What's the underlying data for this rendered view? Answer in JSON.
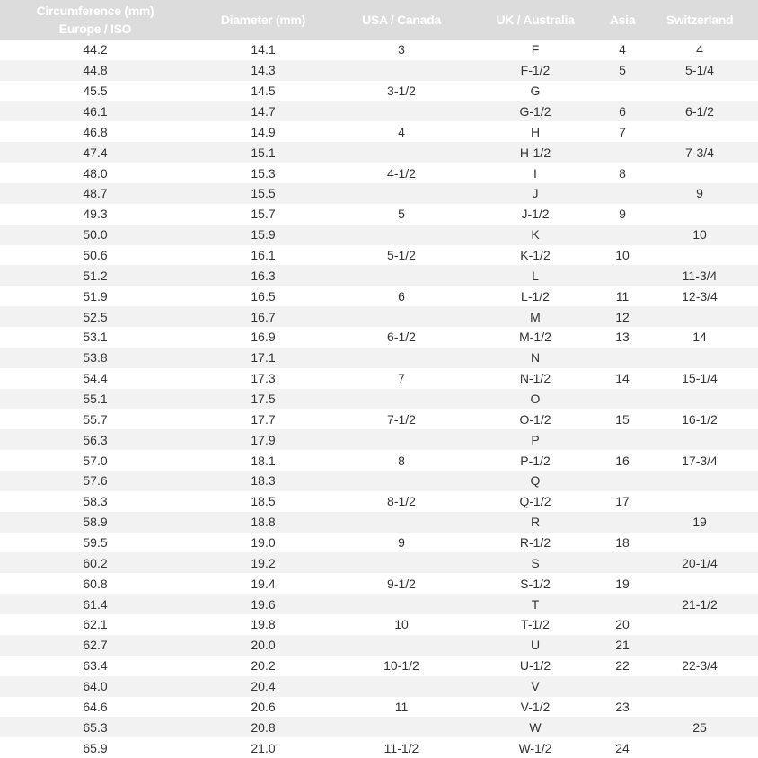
{
  "columns": [
    [
      "Circumference (mm)",
      "Europe / ISO"
    ],
    [
      "Diameter (mm)"
    ],
    [
      "USA / Canada"
    ],
    [
      "UK / Australia"
    ],
    [
      "Asia"
    ],
    [
      "Switzerland"
    ]
  ],
  "rows": [
    [
      "44.2",
      "14.1",
      "3",
      "F",
      "4",
      "4"
    ],
    [
      "44.8",
      "14.3",
      "",
      "F-1/2",
      "5",
      "5-1/4"
    ],
    [
      "45.5",
      "14.5",
      "3-1/2",
      "G",
      "",
      ""
    ],
    [
      "46.1",
      "14.7",
      "",
      "G-1/2",
      "6",
      "6-1/2"
    ],
    [
      "46.8",
      "14.9",
      "4",
      "H",
      "7",
      ""
    ],
    [
      "47.4",
      "15.1",
      "",
      "H-1/2",
      "",
      "7-3/4"
    ],
    [
      "48.0",
      "15.3",
      "4-1/2",
      "I",
      "8",
      ""
    ],
    [
      "48.7",
      "15.5",
      "",
      "J",
      "",
      "9"
    ],
    [
      "49.3",
      "15.7",
      "5",
      "J-1/2",
      "9",
      ""
    ],
    [
      "50.0",
      "15.9",
      "",
      "K",
      "",
      "10"
    ],
    [
      "50.6",
      "16.1",
      "5-1/2",
      "K-1/2",
      "10",
      ""
    ],
    [
      "51.2",
      "16.3",
      "",
      "L",
      "",
      "11-3/4"
    ],
    [
      "51.9",
      "16.5",
      "6",
      "L-1/2",
      "11",
      "12-3/4"
    ],
    [
      "52.5",
      "16.7",
      "",
      "M",
      "12",
      ""
    ],
    [
      "53.1",
      "16.9",
      "6-1/2",
      "M-1/2",
      "13",
      "14"
    ],
    [
      "53.8",
      "17.1",
      "",
      "N",
      "",
      ""
    ],
    [
      "54.4",
      "17.3",
      "7",
      "N-1/2",
      "14",
      "15-1/4"
    ],
    [
      "55.1",
      "17.5",
      "",
      "O",
      "",
      ""
    ],
    [
      "55.7",
      "17.7",
      "7-1/2",
      "O-1/2",
      "15",
      "16-1/2"
    ],
    [
      "56.3",
      "17.9",
      "",
      "P",
      "",
      ""
    ],
    [
      "57.0",
      "18.1",
      "8",
      "P-1/2",
      "16",
      "17-3/4"
    ],
    [
      "57.6",
      "18.3",
      "",
      "Q",
      "",
      ""
    ],
    [
      "58.3",
      "18.5",
      "8-1/2",
      "Q-1/2",
      "17",
      ""
    ],
    [
      "58.9",
      "18.8",
      "",
      "R",
      "",
      "19"
    ],
    [
      "59.5",
      "19.0",
      "9",
      "R-1/2",
      "18",
      ""
    ],
    [
      "60.2",
      "19.2",
      "",
      "S",
      "",
      "20-1/4"
    ],
    [
      "60.8",
      "19.4",
      "9-1/2",
      "S-1/2",
      "19",
      ""
    ],
    [
      "61.4",
      "19.6",
      "",
      "T",
      "",
      "21-1/2"
    ],
    [
      "62.1",
      "19.8",
      "10",
      "T-1/2",
      "20",
      ""
    ],
    [
      "62.7",
      "20.0",
      "",
      "U",
      "21",
      ""
    ],
    [
      "63.4",
      "20.2",
      "10-1/2",
      "U-1/2",
      "22",
      "22-3/4"
    ],
    [
      "64.0",
      "20.4",
      "",
      "V",
      "",
      ""
    ],
    [
      "64.6",
      "20.6",
      "11",
      "V-1/2",
      "23",
      ""
    ],
    [
      "65.3",
      "20.8",
      "",
      "W",
      "",
      "25"
    ],
    [
      "65.9",
      "21.0",
      "11-1/2",
      "W-1/2",
      "24",
      ""
    ]
  ]
}
